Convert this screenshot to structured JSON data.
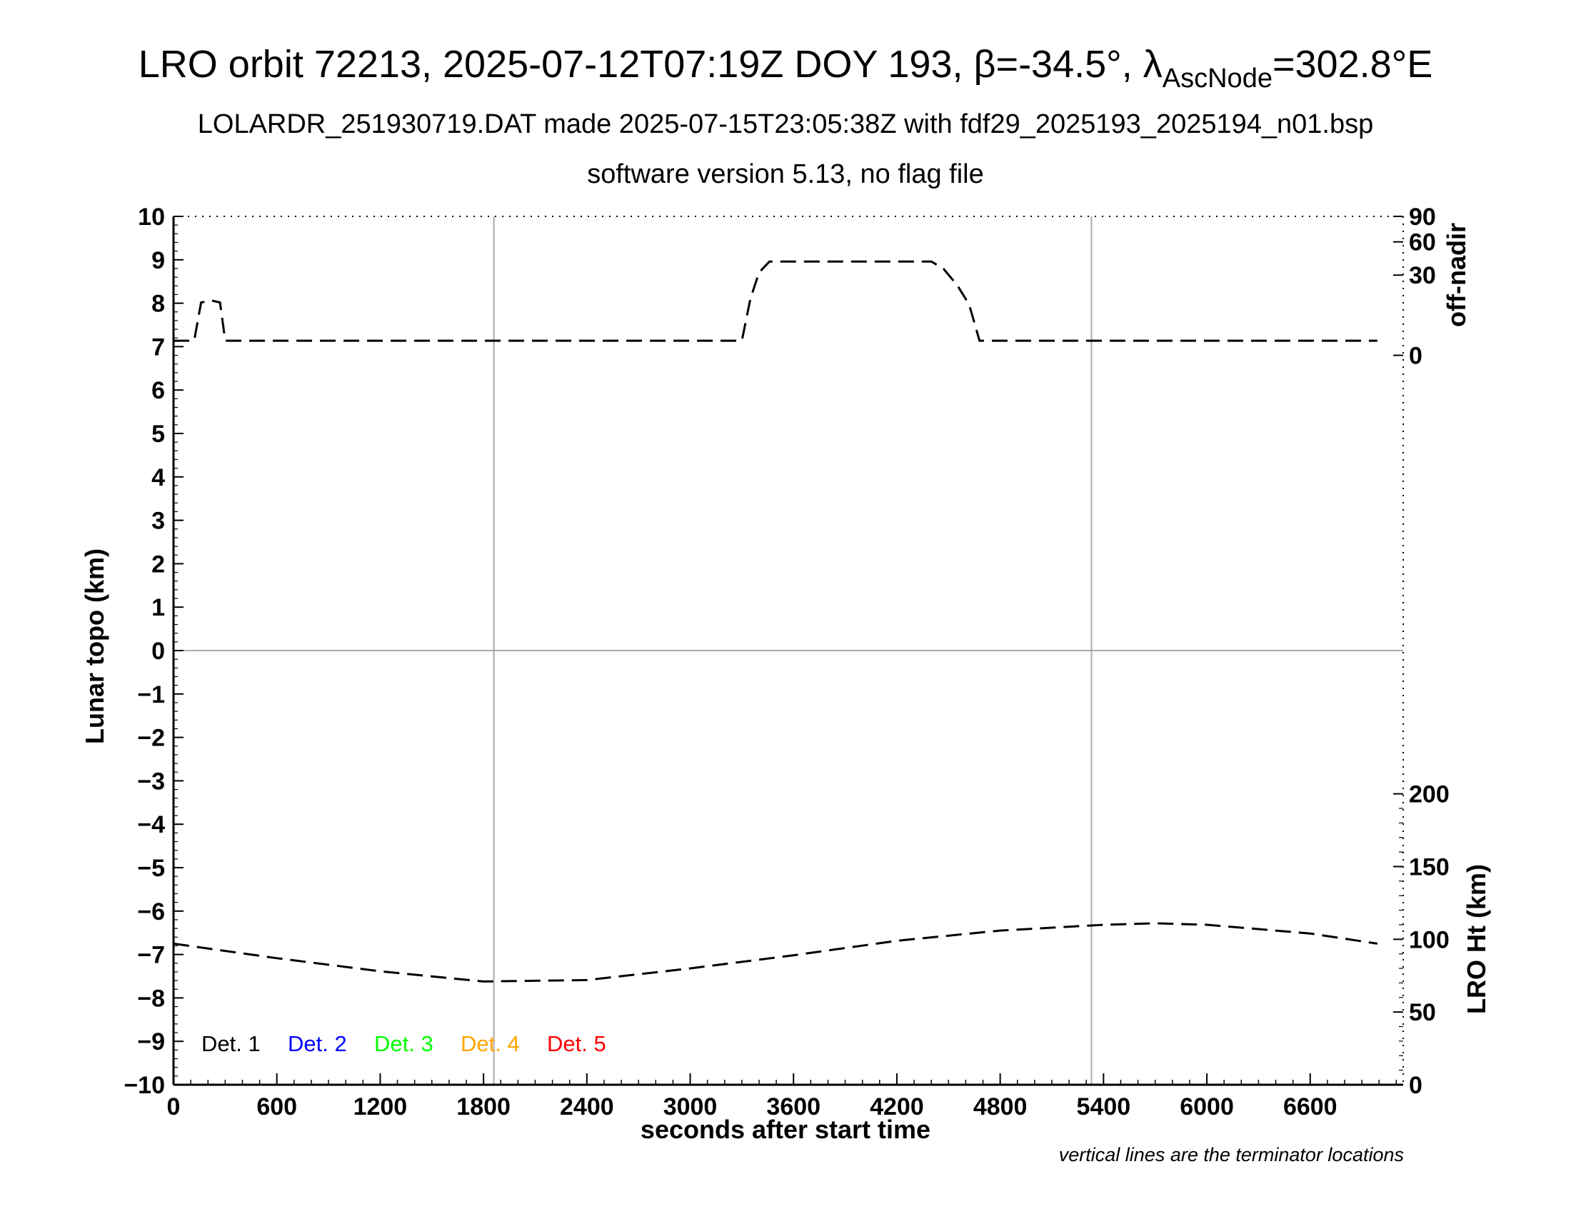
{
  "title": {
    "main": "LRO orbit 72213, 2025-07-12T07:19Z DOY 193, β=-34.5°, λ",
    "subscript": "AscNode",
    "suffix": "=302.8°E"
  },
  "subtitle_1": "LOLARDR_251930719.DAT made 2025-07-15T23:05:38Z with fdf29_2025193_2025194_n01.bsp",
  "subtitle_2": "software version 5.13, no flag file",
  "note": "vertical lines are the terminator locations",
  "chart_data": {
    "type": "line",
    "xlabel": "seconds after start time",
    "ylabel": "Lunar topo (km)",
    "right_ylabel_top": "off-nadir",
    "right_ylabel_bottom": "LRO Ht (km)",
    "xlim": [
      0,
      7140
    ],
    "ylim": [
      -10,
      10
    ],
    "x_ticks": [
      0,
      600,
      1200,
      1800,
      2400,
      3000,
      3600,
      4200,
      4800,
      5400,
      6000,
      6600
    ],
    "x_tick_labels": [
      "0",
      "600",
      "1200",
      "1800",
      "2400",
      "3000",
      "3600",
      "4200",
      "4800",
      "5400",
      "6000",
      "6600"
    ],
    "y_ticks": [
      10,
      9,
      8,
      7,
      6,
      5,
      4,
      3,
      2,
      1,
      0,
      -1,
      -2,
      -3,
      -4,
      -5,
      -6,
      -7,
      -8,
      -9,
      -10
    ],
    "y_tick_labels": [
      "10",
      "9",
      "8",
      "7",
      "6",
      "5",
      "4",
      "3",
      "2",
      "1",
      "0",
      "−1",
      "−2",
      "−3",
      "−4",
      "−5",
      "−6",
      "−7",
      "−8",
      "−9",
      "−10"
    ],
    "off_nadir_axis": {
      "ticks": [
        0,
        30,
        60,
        90
      ],
      "tick_labels": [
        "0",
        "30",
        "60",
        "90"
      ],
      "range": [
        0,
        90
      ]
    },
    "lro_ht_axis": {
      "ticks": [
        0,
        50,
        100,
        150,
        200
      ],
      "tick_labels": [
        "0",
        "50",
        "100",
        "150",
        "200"
      ],
      "range": [
        0,
        200
      ]
    },
    "terminator_lines_x": [
      1860,
      5330
    ],
    "zero_line_y": 0,
    "legend": [
      {
        "label": "Det. 1",
        "color": "#000000"
      },
      {
        "label": "Det. 2",
        "color": "#0000ff"
      },
      {
        "label": "Det. 3",
        "color": "#00ff00"
      },
      {
        "label": "Det. 4",
        "color": "#ffa500"
      },
      {
        "label": "Det. 5",
        "color": "#ff0000"
      }
    ],
    "series": [
      {
        "axis": "off-nadir",
        "style": "dashed",
        "x": [
          0,
          100,
          120,
          160,
          220,
          270,
          300,
          600,
          1200,
          1800,
          2400,
          3000,
          3300,
          3350,
          3400,
          3460,
          3600,
          4200,
          4400,
          4470,
          4550,
          4620,
          4680,
          4720,
          5400,
          6000,
          6600,
          6990
        ],
        "y": [
          1,
          1,
          1,
          13,
          14,
          13,
          1,
          1,
          1,
          1,
          1,
          1,
          1,
          15,
          32,
          41,
          41,
          41,
          41,
          35,
          23,
          12,
          1,
          1,
          1,
          1,
          1,
          1
        ]
      },
      {
        "axis": "LRO Ht",
        "style": "dashed",
        "x": [
          0,
          600,
          1200,
          1800,
          2400,
          3000,
          3600,
          4200,
          4800,
          5400,
          5700,
          6000,
          6600,
          6990
        ],
        "y": [
          97,
          87,
          78,
          71,
          72,
          80,
          89,
          99,
          106,
          110,
          111,
          110,
          104,
          97
        ]
      }
    ]
  }
}
